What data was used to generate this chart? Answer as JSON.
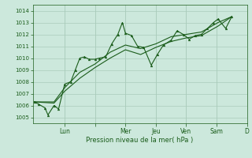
{
  "bg_color": "#cce8dc",
  "grid_color": "#aaccbb",
  "line_color": "#1a5c1a",
  "marker_color": "#1a5c1a",
  "xlabel_color": "#1a5c1a",
  "tick_color": "#1a5c1a",
  "xlabel": "Pression niveau de la mer( hPa )",
  "ylim": [
    1004.5,
    1014.5
  ],
  "yticks": [
    1005,
    1006,
    1007,
    1008,
    1009,
    1010,
    1011,
    1012,
    1013,
    1014
  ],
  "day_labels": [
    "Lun",
    "Mer",
    "Jeu",
    "Ven",
    "Sam",
    "D"
  ],
  "day_positions": [
    1.0,
    3.0,
    4.0,
    5.0,
    6.0,
    7.0
  ],
  "day_tick_positions": [
    1.0,
    2.0,
    3.0,
    4.0,
    5.0,
    6.0,
    7.0
  ],
  "series0_x": [
    0.0,
    0.15,
    0.35,
    0.45,
    0.65,
    0.8,
    1.0,
    1.2,
    1.35,
    1.5,
    1.65,
    1.8,
    2.0,
    2.15,
    2.35,
    2.55,
    2.75,
    2.9,
    3.0,
    3.2,
    3.4,
    3.6,
    3.85,
    4.05,
    4.25,
    4.5,
    4.7,
    4.9,
    5.1,
    5.3,
    5.5,
    5.7,
    5.9,
    6.05,
    6.3,
    6.5
  ],
  "series0_y": [
    1006.3,
    1006.1,
    1005.8,
    1005.2,
    1006.0,
    1005.7,
    1007.8,
    1008.0,
    1009.0,
    1010.0,
    1010.1,
    1009.9,
    1009.9,
    1010.0,
    1010.1,
    1011.2,
    1012.0,
    1013.0,
    1012.1,
    1011.9,
    1011.0,
    1010.9,
    1009.4,
    1010.3,
    1011.1,
    1011.5,
    1012.3,
    1012.0,
    1011.6,
    1011.9,
    1012.0,
    1012.5,
    1013.0,
    1013.3,
    1012.5,
    1013.5
  ],
  "series1_x": [
    0.0,
    0.65,
    1.0,
    1.5,
    2.0,
    2.5,
    3.0,
    3.5,
    4.0,
    4.5,
    5.0,
    5.5,
    6.05,
    6.5
  ],
  "series1_y": [
    1006.3,
    1006.3,
    1007.5,
    1008.8,
    1009.5,
    1010.5,
    1011.1,
    1010.8,
    1011.2,
    1011.8,
    1012.0,
    1012.2,
    1013.0,
    1013.5
  ],
  "series2_x": [
    0.0,
    0.65,
    1.0,
    1.5,
    2.0,
    2.5,
    3.0,
    3.5,
    4.0,
    4.5,
    5.0,
    5.5,
    6.05,
    6.5
  ],
  "series2_y": [
    1006.3,
    1006.2,
    1007.2,
    1008.3,
    1009.2,
    1010.0,
    1010.7,
    1010.3,
    1010.9,
    1011.4,
    1011.7,
    1011.9,
    1012.7,
    1013.5
  ]
}
